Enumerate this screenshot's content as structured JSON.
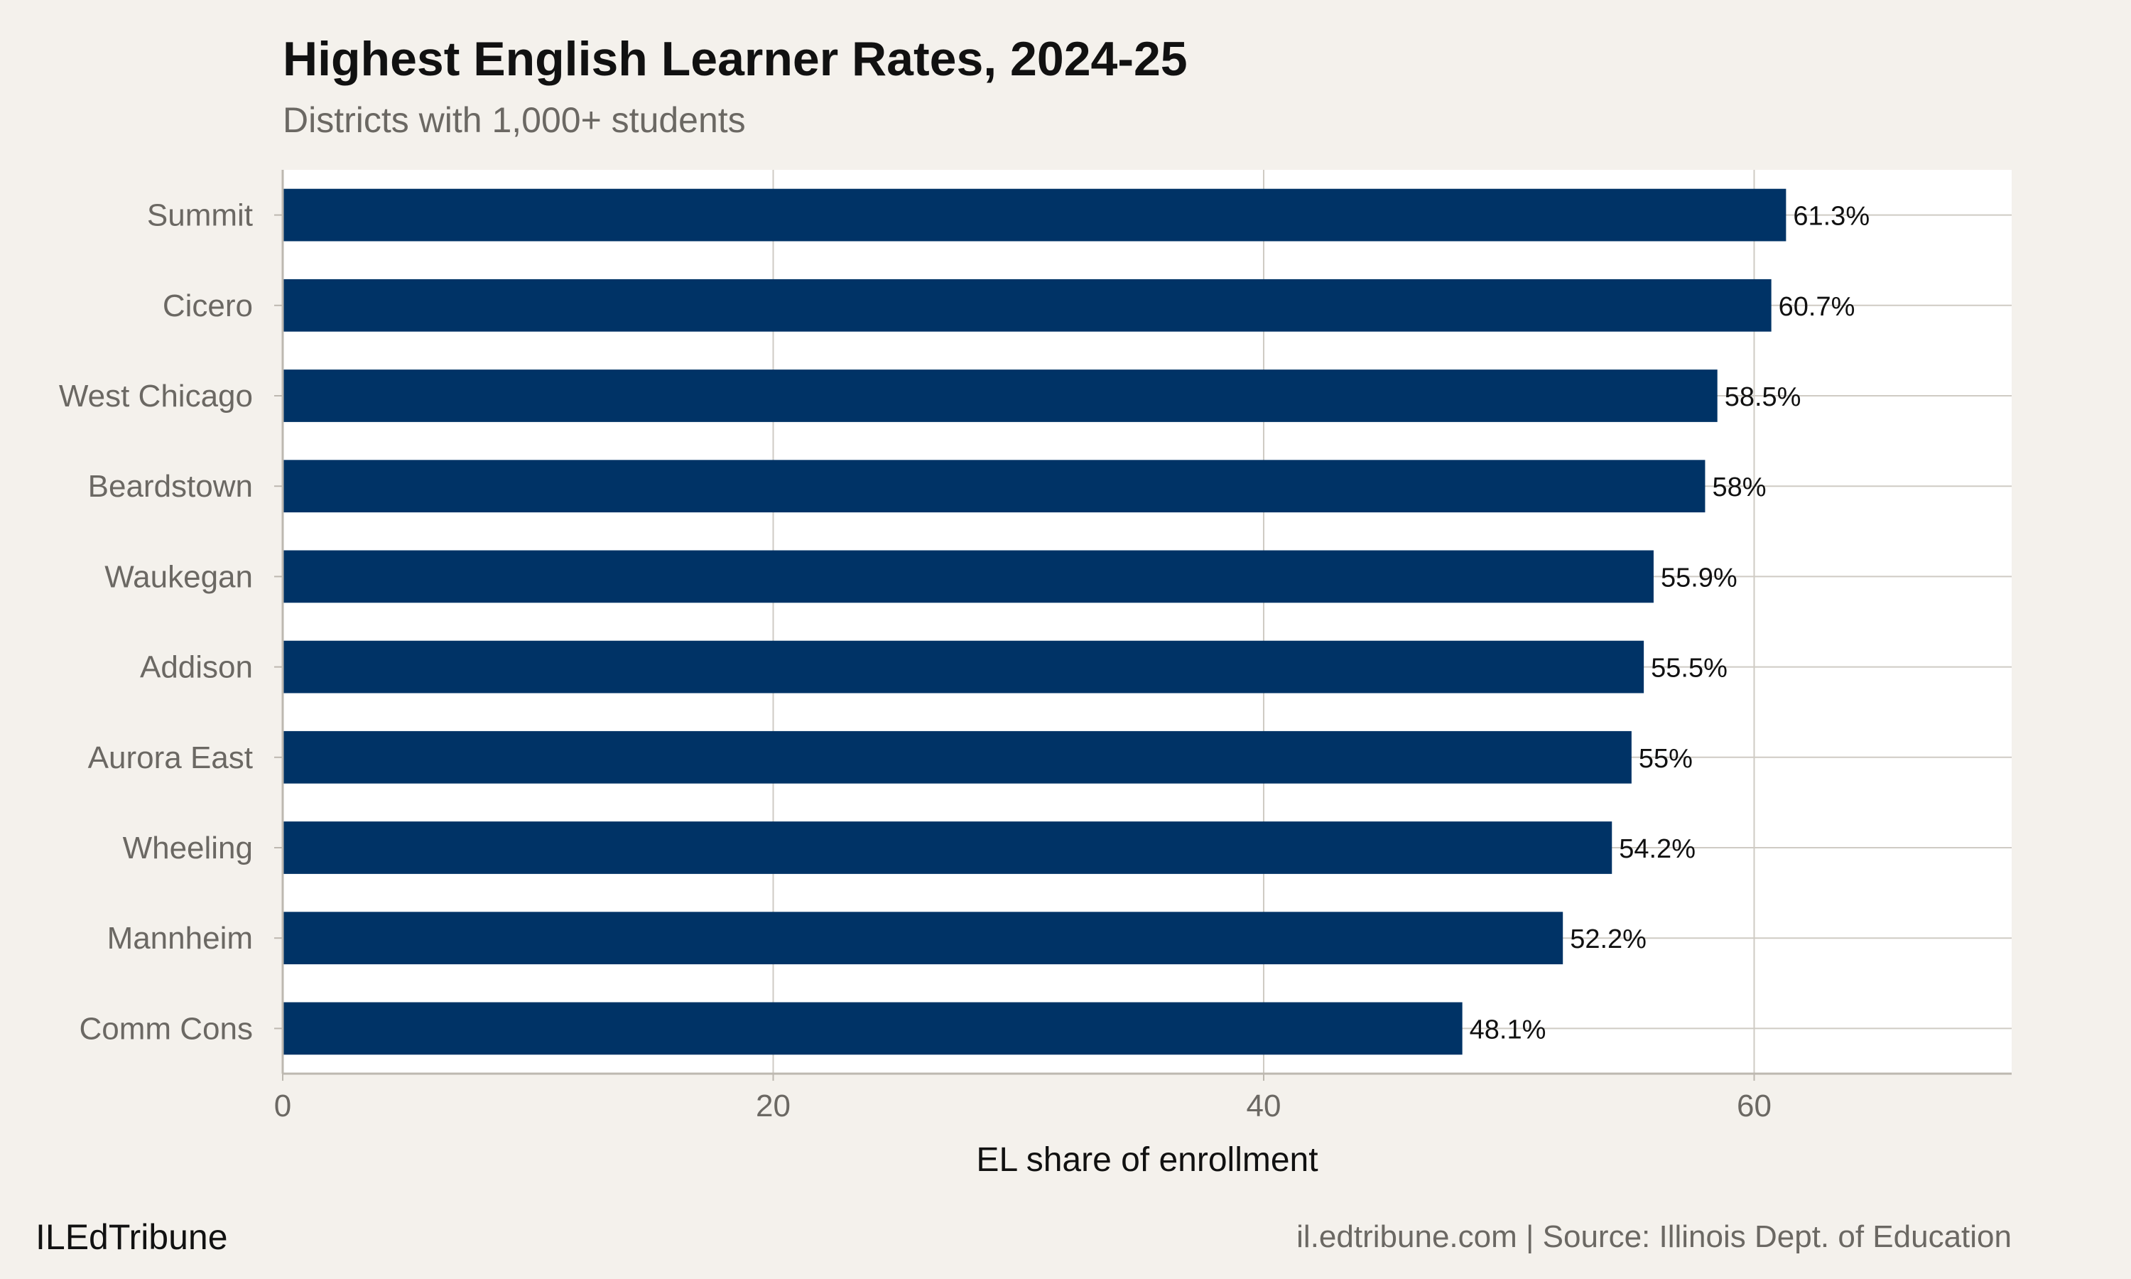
{
  "chart_data": {
    "type": "bar",
    "orientation": "horizontal",
    "title": "Highest English Learner Rates, 2024-25",
    "subtitle": "Districts with 1,000+ students",
    "xlabel": "EL share of enrollment",
    "ylabel": "",
    "categories": [
      "Summit",
      "Cicero",
      "West Chicago",
      "Beardstown",
      "Waukegan",
      "Addison",
      "Aurora East",
      "Wheeling",
      "Mannheim",
      "Comm Cons"
    ],
    "values": [
      61.3,
      60.7,
      58.5,
      58,
      55.9,
      55.5,
      55,
      54.2,
      52.2,
      48.1
    ],
    "data_labels": [
      "61.3%",
      "60.7%",
      "58.5%",
      "58%",
      "55.9%",
      "55.5%",
      "55%",
      "54.2%",
      "52.2%",
      "48.1%"
    ],
    "xlim": [
      0,
      70.5
    ],
    "xticks": [
      0,
      20,
      40,
      60
    ],
    "grid": true,
    "bar_color": "#003366",
    "panel_color": "#ffffff",
    "background_color": "#f4f1ec"
  },
  "footer": {
    "brand": "ILEdTribune",
    "source": "il.edtribune.com | Source: Illinois Dept. of Education"
  }
}
